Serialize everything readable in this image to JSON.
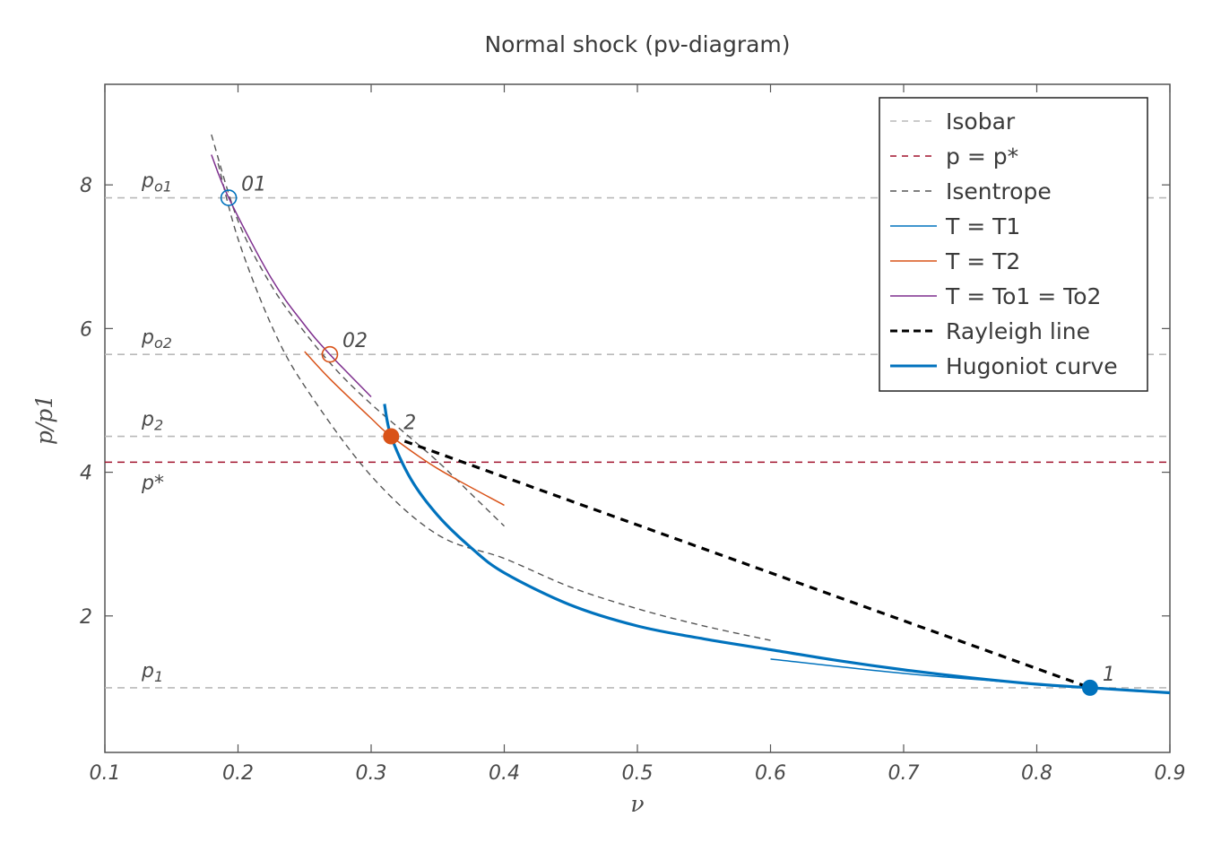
{
  "chart_data": {
    "type": "line",
    "title": "Normal shock (pν-diagram)",
    "xlabel": "ν",
    "ylabel": "p/p1",
    "xlim": [
      0.1,
      0.9
    ],
    "ylim": [
      0.1,
      9.4
    ],
    "xticks": [
      0.1,
      0.2,
      0.3,
      0.4,
      0.5,
      0.6,
      0.7,
      0.8,
      0.9
    ],
    "xtick_labels": [
      "0.1",
      "0.2",
      "0.3",
      "0.4",
      "0.5",
      "0.6",
      "0.7",
      "0.8",
      "0.9"
    ],
    "yticks": [
      2,
      4,
      6,
      8
    ],
    "ytick_labels": [
      "2",
      "4",
      "6",
      "8"
    ],
    "grid": false,
    "legend_position": "top-right",
    "legend": [
      {
        "label": "Isobar",
        "color": "#b9b9b9",
        "dash": "dashed",
        "weight": "thin"
      },
      {
        "label": "p = p*",
        "color": "#a2142f",
        "dash": "dashed",
        "weight": "thin"
      },
      {
        "label": "Isentrope",
        "color": "#555555",
        "dash": "dashed",
        "weight": "thin"
      },
      {
        "label": "T = T1",
        "color": "#0072bd",
        "dash": "solid",
        "weight": "thin"
      },
      {
        "label": "T = T2",
        "color": "#d95319",
        "dash": "solid",
        "weight": "thin"
      },
      {
        "label": "T = To1 = To2",
        "color": "#7e2f8e",
        "dash": "solid",
        "weight": "thin"
      },
      {
        "label": "Rayleigh line",
        "color": "#000000",
        "dash": "dashed",
        "weight": "thick"
      },
      {
        "label": "Hugoniot curve",
        "color": "#0072bd",
        "dash": "solid",
        "weight": "thick"
      }
    ],
    "isobars": [
      {
        "label": "p1",
        "y": 1.0
      },
      {
        "label": "p2",
        "y": 4.5
      },
      {
        "label": "po2",
        "y": 5.64
      },
      {
        "label": "po1",
        "y": 7.82
      }
    ],
    "p_star": {
      "label": "p*",
      "y": 4.14
    },
    "points": [
      {
        "label": "1",
        "x": 0.84,
        "y": 1.0,
        "style": "filled",
        "color": "#0072bd"
      },
      {
        "label": "2",
        "x": 0.315,
        "y": 4.5,
        "style": "filled",
        "color": "#d95319"
      },
      {
        "label": "01",
        "x": 0.193,
        "y": 7.82,
        "style": "open",
        "color": "#0072bd"
      },
      {
        "label": "02",
        "x": 0.269,
        "y": 5.64,
        "style": "open",
        "color": "#d95319"
      }
    ],
    "series": [
      {
        "name": "Hugoniot curve",
        "x": [
          0.31,
          0.315,
          0.33,
          0.35,
          0.375,
          0.4,
          0.45,
          0.5,
          0.55,
          0.6,
          0.65,
          0.7,
          0.75,
          0.8,
          0.84,
          0.9
        ],
        "y": [
          4.95,
          4.5,
          3.9,
          3.4,
          2.95,
          2.6,
          2.15,
          1.86,
          1.68,
          1.53,
          1.38,
          1.25,
          1.14,
          1.05,
          1.0,
          0.93
        ]
      },
      {
        "name": "Rayleigh line",
        "x": [
          0.315,
          0.84
        ],
        "y": [
          4.5,
          1.0
        ]
      },
      {
        "name": "Isentrope through 1",
        "x": [
          0.185,
          0.2,
          0.225,
          0.25,
          0.3,
          0.35,
          0.4,
          0.45,
          0.5,
          0.55,
          0.6
        ],
        "y": [
          8.3,
          7.25,
          6.05,
          5.2,
          3.95,
          3.13,
          2.8,
          2.4,
          2.1,
          1.86,
          1.66
        ]
      },
      {
        "name": "Isentrope through 2",
        "x": [
          0.18,
          0.2,
          0.225,
          0.25,
          0.275,
          0.3,
          0.325,
          0.35,
          0.375,
          0.4
        ],
        "y": [
          8.7,
          7.5,
          6.6,
          5.95,
          5.4,
          4.95,
          4.55,
          4.15,
          3.7,
          3.25
        ]
      },
      {
        "name": "T = T1",
        "x": [
          0.6,
          0.7,
          0.8,
          0.84
        ],
        "y": [
          1.4,
          1.2,
          1.05,
          1.0
        ]
      },
      {
        "name": "T = T2",
        "x": [
          0.25,
          0.269,
          0.3,
          0.315,
          0.35,
          0.4
        ],
        "y": [
          5.68,
          5.3,
          4.75,
          4.5,
          4.05,
          3.54
        ]
      },
      {
        "name": "T = To1 = To2",
        "x": [
          0.18,
          0.193,
          0.225,
          0.25,
          0.269,
          0.3
        ],
        "y": [
          8.42,
          7.82,
          6.7,
          6.05,
          5.64,
          5.05
        ]
      }
    ]
  }
}
